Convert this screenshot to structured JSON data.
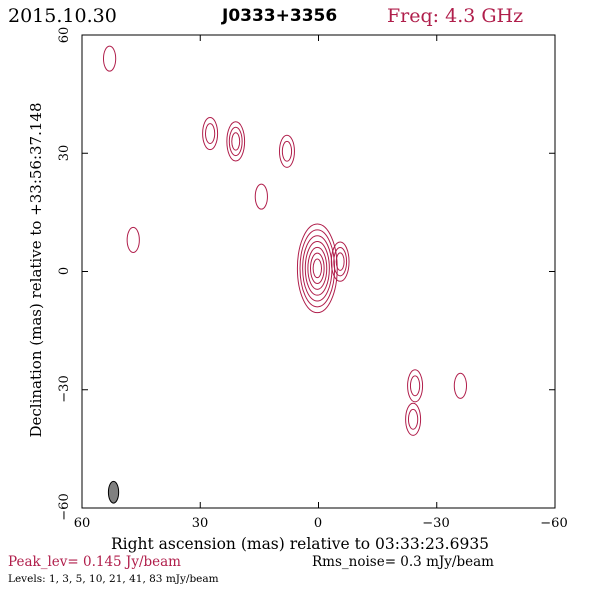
{
  "header": {
    "date": "2015.10.30",
    "source": "J0333+3356",
    "freq": "Freq: 4.3 GHz"
  },
  "colors": {
    "contour": "#b01e4b",
    "text_accent": "#b01e4b",
    "axis": "#000000",
    "beam_fill": "#808080"
  },
  "chart_data": {
    "type": "contour",
    "title": "J0333+3356",
    "xlabel": "Right ascension (mas) relative to 03:33:23.6935",
    "ylabel": "Declination (mas) relative to +33:56:37.148",
    "xlim": [
      60,
      -60
    ],
    "ylim": [
      -60,
      60
    ],
    "xticks": [
      60,
      30,
      0,
      -30,
      -60
    ],
    "yticks": [
      -60,
      -30,
      0,
      30,
      60
    ],
    "xtick_labels": [
      "60",
      "30",
      "0",
      "−30",
      "−60"
    ],
    "ytick_labels": [
      "−60",
      "−30",
      "0",
      "30",
      "60"
    ],
    "contour_levels_mJy": [
      1,
      3,
      5,
      10,
      21,
      41,
      83
    ],
    "components": [
      {
        "x": 0.3,
        "y": 0.8,
        "levels": 7
      },
      {
        "x": -5.5,
        "y": 2.5,
        "levels": 3
      },
      {
        "x": 21,
        "y": 33,
        "levels": 3
      },
      {
        "x": 27.5,
        "y": 35,
        "levels": 2
      },
      {
        "x": 8,
        "y": 30.5,
        "levels": 2
      },
      {
        "x": 14.5,
        "y": 19,
        "levels": 1
      },
      {
        "x": 47,
        "y": 8,
        "levels": 1
      },
      {
        "x": 53,
        "y": 54,
        "levels": 1
      },
      {
        "x": -24.5,
        "y": -29,
        "levels": 2
      },
      {
        "x": -36,
        "y": -29,
        "levels": 1
      },
      {
        "x": -24,
        "y": -37.5,
        "levels": 2
      }
    ],
    "beam": {
      "major_mas": 5.5,
      "minor_mas": 2.6,
      "pa_deg": 0
    }
  },
  "footer": {
    "peak": "Peak_lev=  0.145 Jy/beam",
    "rms": "Rms_noise=   0.3 mJy/beam",
    "levels": "Levels:   1,   3,   5,  10,  21,  41,  83 mJy/beam"
  }
}
